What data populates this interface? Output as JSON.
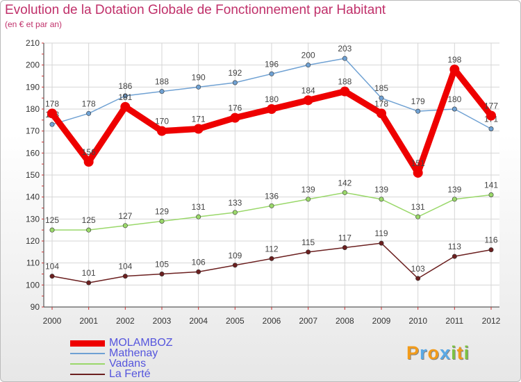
{
  "title": "Evolution de la Dotation Globale de Fonctionnement par Habitant",
  "subtitle": "(en € et par an)",
  "logo": {
    "letters": [
      "P",
      "r",
      "o",
      "x",
      "i",
      "t",
      "i"
    ],
    "colors": [
      "#f29b1a",
      "#5aa9e6",
      "#f29b1a",
      "#5aa9e6",
      "#7cc242",
      "#f29b1a",
      "#7cc242"
    ]
  },
  "chart_data": {
    "type": "line",
    "title": "Evolution de la Dotation Globale de Fonctionnement par Habitant",
    "subtitle": "(en € et par an)",
    "x": [
      "2000",
      "2001",
      "2002",
      "2003",
      "2004",
      "2005",
      "2006",
      "2007",
      "2008",
      "2009",
      "2010",
      "2011",
      "2012"
    ],
    "ylim": [
      90,
      210
    ],
    "yticks": [
      90,
      100,
      110,
      120,
      130,
      140,
      150,
      160,
      170,
      180,
      190,
      200,
      210
    ],
    "grid": true,
    "legend_position": "bottom-left",
    "series": [
      {
        "name": "MOLAMBOZ",
        "color": "#ee0000",
        "emphasis": true,
        "values": [
          178,
          156,
          181,
          170,
          171,
          176,
          180,
          184,
          188,
          178,
          151,
          198,
          177
        ],
        "labels": [
          "178",
          "156",
          "181",
          "170",
          "171",
          "176",
          "180",
          "184",
          "188",
          "178",
          "151",
          "198",
          "177"
        ]
      },
      {
        "name": "Mathenay",
        "color": "#6fa1d3",
        "emphasis": false,
        "values": [
          173,
          178,
          186,
          188,
          190,
          192,
          196,
          200,
          203,
          185,
          179,
          180,
          171
        ],
        "labels": [
          "173",
          "178",
          "186",
          "188",
          "190",
          "192",
          "196",
          "200",
          "203",
          "185",
          "179",
          "180",
          "171"
        ]
      },
      {
        "name": "Vadans",
        "color": "#9ad86a",
        "emphasis": false,
        "values": [
          125,
          125,
          127,
          129,
          131,
          133,
          136,
          139,
          142,
          139,
          131,
          139,
          141
        ],
        "labels": [
          "125",
          "125",
          "127",
          "129",
          "131",
          "133",
          "136",
          "139",
          "142",
          "139",
          "131",
          "139",
          "141"
        ]
      },
      {
        "name": "La Ferté",
        "color": "#6b1f1f",
        "emphasis": false,
        "values": [
          104,
          101,
          104,
          105,
          106,
          109,
          112,
          115,
          117,
          119,
          103,
          113,
          116
        ],
        "labels": [
          "104",
          "101",
          "104",
          "105",
          "106",
          "109",
          "112",
          "115",
          "117",
          "119",
          "103",
          "113",
          "116"
        ]
      }
    ]
  }
}
